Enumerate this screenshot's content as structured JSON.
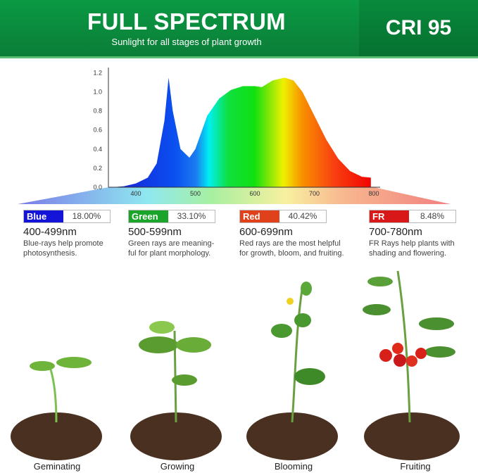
{
  "header": {
    "title": "FULL SPECTRUM",
    "subtitle": "Sunlight for all stages of plant growth",
    "cri": "CRI 95"
  },
  "chart_data": {
    "type": "area",
    "x_ticks": [
      "400",
      "500",
      "600",
      "700",
      "800"
    ],
    "y_ticks": [
      "0.0",
      "0.2",
      "0.4",
      "0.6",
      "0.8",
      "1.0",
      "1.2"
    ],
    "xlim": [
      355,
      810
    ],
    "ylim": [
      0,
      1.25
    ],
    "points": [
      [
        360,
        0
      ],
      [
        380,
        0.01
      ],
      [
        400,
        0.04
      ],
      [
        420,
        0.1
      ],
      [
        435,
        0.25
      ],
      [
        448,
        0.7
      ],
      [
        455,
        1.15
      ],
      [
        462,
        0.8
      ],
      [
        475,
        0.4
      ],
      [
        490,
        0.31
      ],
      [
        500,
        0.4
      ],
      [
        520,
        0.75
      ],
      [
        540,
        0.93
      ],
      [
        560,
        1.02
      ],
      [
        580,
        1.06
      ],
      [
        600,
        1.06
      ],
      [
        612,
        1.05
      ],
      [
        630,
        1.12
      ],
      [
        650,
        1.15
      ],
      [
        665,
        1.12
      ],
      [
        680,
        1.0
      ],
      [
        700,
        0.75
      ],
      [
        720,
        0.5
      ],
      [
        740,
        0.3
      ],
      [
        760,
        0.17
      ],
      [
        780,
        0.11
      ],
      [
        795,
        0.1
      ],
      [
        795,
        0
      ]
    ]
  },
  "bands": [
    {
      "name": "Blue",
      "percent": "18.00%",
      "range": "400-499nm",
      "desc1": "Blue-rays help promote",
      "desc2": "photosynthesis.",
      "color": "#1414d8"
    },
    {
      "name": "Green",
      "percent": "33.10%",
      "range": "500-599nm",
      "desc1": "Green rays are meaning-",
      "desc2": "ful for plant morphology.",
      "color": "#1aa52a"
    },
    {
      "name": "Red",
      "percent": "40.42%",
      "range": "600-699nm",
      "desc1": "Red rays are the most helpful",
      "desc2": "for growth, bloom, and fruiting.",
      "color": "#e0401a"
    },
    {
      "name": "FR",
      "percent": "8.48%",
      "range": "700-780nm",
      "desc1": "FR Rays help plants with",
      "desc2": "shading and flowering.",
      "color": "#d81818"
    }
  ],
  "stages": [
    "Geminating",
    "Growing",
    "Blooming",
    "Fruiting"
  ]
}
